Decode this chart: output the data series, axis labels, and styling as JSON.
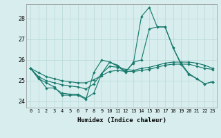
{
  "xlabel": "Humidex (Indice chaleur)",
  "ylabel": "",
  "xlim": [
    -0.5,
    23.5
  ],
  "ylim": [
    23.7,
    28.7
  ],
  "yticks": [
    24,
    25,
    26,
    27,
    28
  ],
  "xticks": [
    0,
    1,
    2,
    3,
    4,
    5,
    6,
    7,
    8,
    9,
    10,
    11,
    12,
    13,
    14,
    15,
    16,
    17,
    18,
    19,
    20,
    21,
    22,
    23
  ],
  "bg_color": "#d8eeee",
  "grid_color": "#b8d8d8",
  "line_color": "#1a7a6e",
  "series": [
    [
      25.6,
      25.1,
      24.9,
      24.7,
      24.3,
      24.3,
      24.3,
      24.1,
      25.4,
      26.0,
      25.9,
      25.7,
      25.4,
      25.9,
      26.0,
      27.5,
      27.6,
      27.6,
      26.6,
      25.8,
      25.3,
      25.1,
      24.85,
      24.95
    ],
    [
      25.6,
      25.15,
      24.65,
      24.65,
      24.4,
      24.35,
      24.35,
      24.15,
      24.4,
      25.35,
      25.9,
      25.75,
      25.45,
      25.85,
      28.1,
      28.55,
      27.6,
      27.6,
      26.6,
      25.85,
      25.35,
      25.1,
      24.85,
      24.95
    ],
    [
      25.6,
      25.2,
      25.0,
      24.9,
      24.8,
      24.75,
      24.7,
      24.6,
      24.85,
      25.35,
      25.7,
      25.65,
      25.55,
      25.5,
      25.6,
      25.65,
      25.75,
      25.85,
      25.9,
      25.9,
      25.9,
      25.85,
      25.75,
      25.6
    ],
    [
      25.6,
      25.4,
      25.2,
      25.1,
      25.0,
      24.95,
      24.9,
      24.9,
      25.05,
      25.25,
      25.45,
      25.5,
      25.45,
      25.45,
      25.5,
      25.55,
      25.65,
      25.75,
      25.8,
      25.8,
      25.8,
      25.7,
      25.6,
      25.55
    ]
  ]
}
